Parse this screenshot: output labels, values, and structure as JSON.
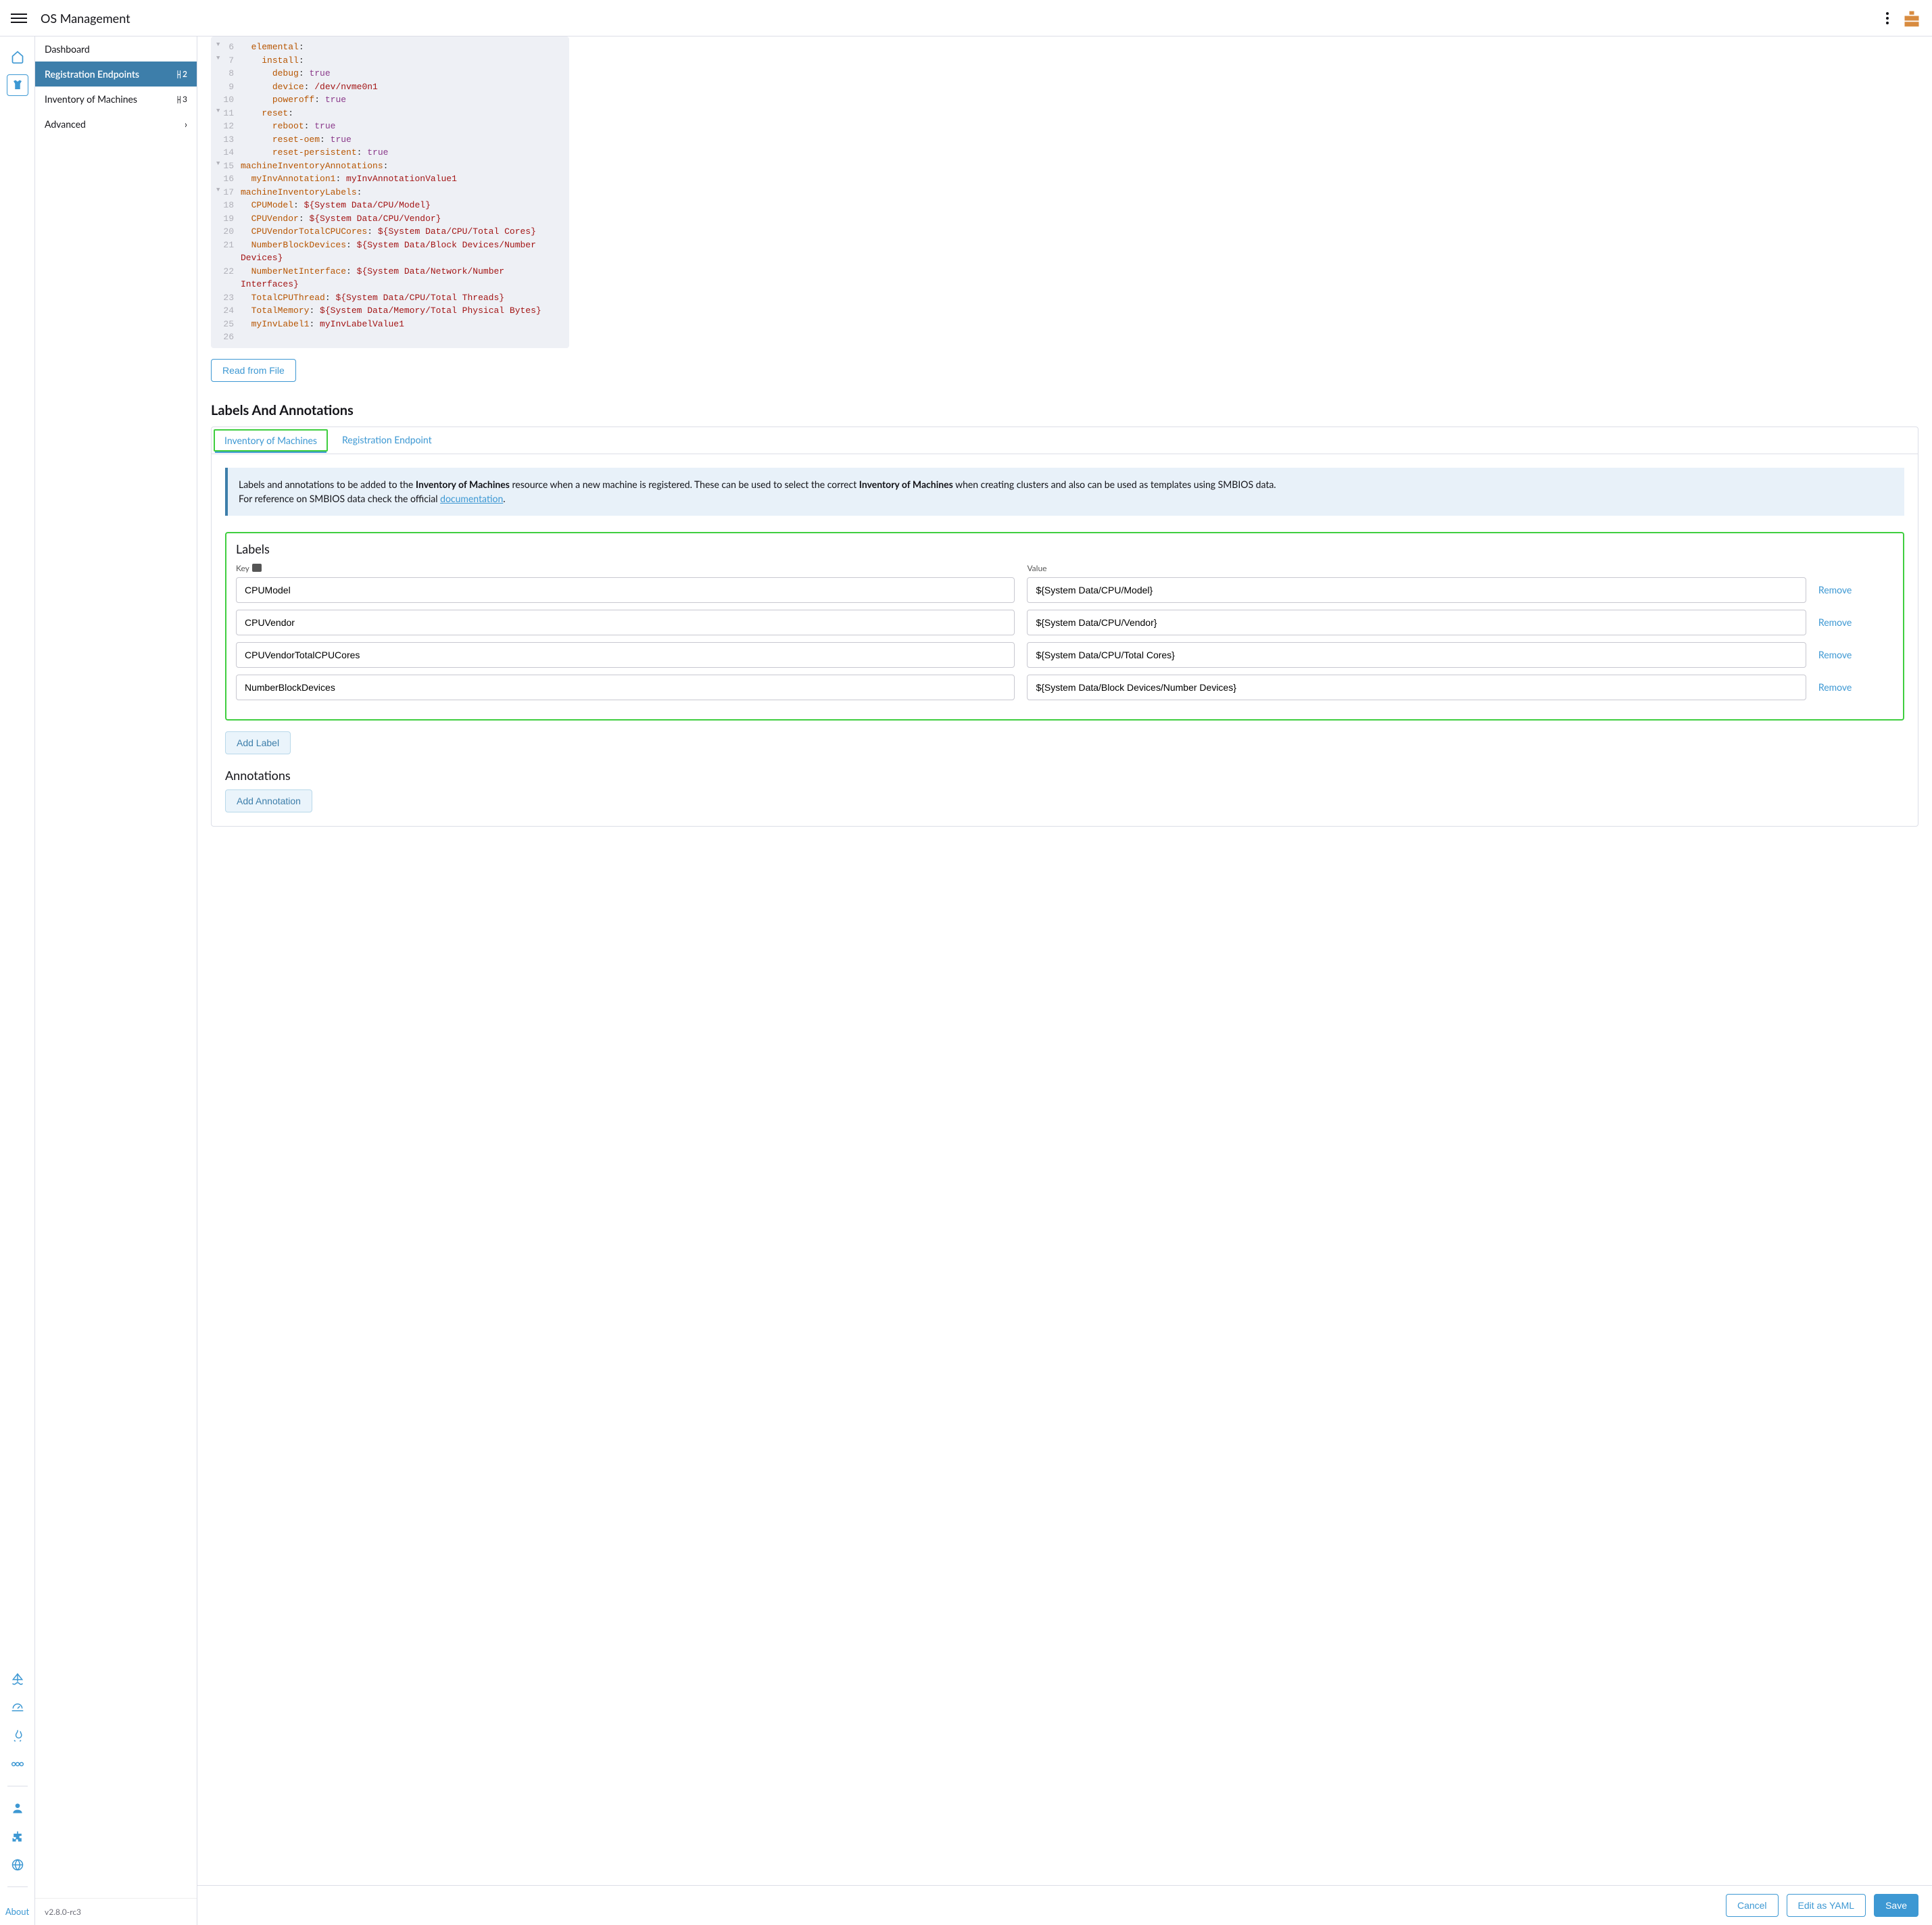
{
  "topbar": {
    "title": "OS Management"
  },
  "sidebar": {
    "items": [
      {
        "label": "Dashboard",
        "badge": ""
      },
      {
        "label": "Registration Endpoints",
        "badge": "2",
        "active": true
      },
      {
        "label": "Inventory of Machines",
        "badge": "3"
      },
      {
        "label": "Advanced",
        "chevron": true
      }
    ],
    "version": "v2.8.0-rc3"
  },
  "rail": {
    "about": "About"
  },
  "code": {
    "lines": [
      {
        "n": 6,
        "fold": true,
        "indent": 2,
        "segs": [
          [
            "k",
            "elemental"
          ],
          [
            "p",
            ":"
          ]
        ]
      },
      {
        "n": 7,
        "fold": true,
        "indent": 4,
        "segs": [
          [
            "k",
            "install"
          ],
          [
            "p",
            ":"
          ]
        ]
      },
      {
        "n": 8,
        "fold": false,
        "indent": 6,
        "segs": [
          [
            "k",
            "debug"
          ],
          [
            "p",
            ": "
          ],
          [
            "b",
            "true"
          ]
        ]
      },
      {
        "n": 9,
        "fold": false,
        "indent": 6,
        "segs": [
          [
            "k",
            "device"
          ],
          [
            "p",
            ": "
          ],
          [
            "s",
            "/dev/nvme0n1"
          ]
        ]
      },
      {
        "n": 10,
        "fold": false,
        "indent": 6,
        "segs": [
          [
            "k",
            "poweroff"
          ],
          [
            "p",
            ": "
          ],
          [
            "b",
            "true"
          ]
        ]
      },
      {
        "n": 11,
        "fold": true,
        "indent": 4,
        "segs": [
          [
            "k",
            "reset"
          ],
          [
            "p",
            ":"
          ]
        ]
      },
      {
        "n": 12,
        "fold": false,
        "indent": 6,
        "segs": [
          [
            "k",
            "reboot"
          ],
          [
            "p",
            ": "
          ],
          [
            "b",
            "true"
          ]
        ]
      },
      {
        "n": 13,
        "fold": false,
        "indent": 6,
        "segs": [
          [
            "k",
            "reset-oem"
          ],
          [
            "p",
            ": "
          ],
          [
            "b",
            "true"
          ]
        ]
      },
      {
        "n": 14,
        "fold": false,
        "indent": 6,
        "segs": [
          [
            "k",
            "reset-persistent"
          ],
          [
            "p",
            ": "
          ],
          [
            "b",
            "true"
          ]
        ]
      },
      {
        "n": 15,
        "fold": true,
        "indent": 0,
        "segs": [
          [
            "k",
            "machineInventoryAnnotations"
          ],
          [
            "p",
            ":"
          ]
        ]
      },
      {
        "n": 16,
        "fold": false,
        "indent": 2,
        "segs": [
          [
            "k",
            "myInvAnnotation1"
          ],
          [
            "p",
            ": "
          ],
          [
            "s",
            "myInvAnnotationValue1"
          ]
        ]
      },
      {
        "n": 17,
        "fold": true,
        "indent": 0,
        "segs": [
          [
            "k",
            "machineInventoryLabels"
          ],
          [
            "p",
            ":"
          ]
        ]
      },
      {
        "n": 18,
        "fold": false,
        "indent": 2,
        "segs": [
          [
            "k",
            "CPUModel"
          ],
          [
            "p",
            ": "
          ],
          [
            "s",
            "${System Data/CPU/Model}"
          ]
        ]
      },
      {
        "n": 19,
        "fold": false,
        "indent": 2,
        "segs": [
          [
            "k",
            "CPUVendor"
          ],
          [
            "p",
            ": "
          ],
          [
            "s",
            "${System Data/CPU/Vendor}"
          ]
        ]
      },
      {
        "n": 20,
        "fold": false,
        "indent": 2,
        "segs": [
          [
            "k",
            "CPUVendorTotalCPUCores"
          ],
          [
            "p",
            ": "
          ],
          [
            "s",
            "${System Data/CPU/Total Cores}"
          ]
        ]
      },
      {
        "n": 21,
        "fold": false,
        "indent": 2,
        "segs": [
          [
            "k",
            "NumberBlockDevices"
          ],
          [
            "p",
            ": "
          ],
          [
            "s",
            "${System Data/Block Devices/Number Devices}"
          ]
        ]
      },
      {
        "n": 22,
        "fold": false,
        "indent": 2,
        "segs": [
          [
            "k",
            "NumberNetInterface"
          ],
          [
            "p",
            ": "
          ],
          [
            "s",
            "${System Data/Network/Number Interfaces}"
          ]
        ]
      },
      {
        "n": 23,
        "fold": false,
        "indent": 2,
        "segs": [
          [
            "k",
            "TotalCPUThread"
          ],
          [
            "p",
            ": "
          ],
          [
            "s",
            "${System Data/CPU/Total Threads}"
          ]
        ]
      },
      {
        "n": 24,
        "fold": false,
        "indent": 2,
        "segs": [
          [
            "k",
            "TotalMemory"
          ],
          [
            "p",
            ": "
          ],
          [
            "s",
            "${System Data/Memory/Total Physical Bytes}"
          ]
        ]
      },
      {
        "n": 25,
        "fold": false,
        "indent": 2,
        "segs": [
          [
            "k",
            "myInvLabel1"
          ],
          [
            "p",
            ": "
          ],
          [
            "s",
            "myInvLabelValue1"
          ]
        ]
      },
      {
        "n": 26,
        "fold": false,
        "indent": 0,
        "segs": []
      }
    ]
  },
  "buttons": {
    "readFile": "Read from File",
    "addLabel": "Add Label",
    "addAnnotation": "Add Annotation",
    "cancel": "Cancel",
    "editYaml": "Edit as YAML",
    "save": "Save",
    "remove": "Remove"
  },
  "section": {
    "title": "Labels And Annotations",
    "tabs": [
      "Inventory of Machines",
      "Registration Endpoint"
    ],
    "banner_pre": "Labels and annotations to be added to the ",
    "banner_b1": "Inventory of Machines",
    "banner_mid": " resource when a new machine is registered. These can be used to select the correct ",
    "banner_b2": "Inventory of Machines",
    "banner_post": " when creating clusters and also can be used as templates using SMBIOS data.",
    "banner_ref": "For reference on SMBIOS data check the official ",
    "banner_link": "documentation",
    "labels_title": "Labels",
    "key_header": "Key",
    "value_header": "Value",
    "annot_title": "Annotations"
  },
  "labels": [
    {
      "key": "CPUModel",
      "value": "${System Data/CPU/Model}"
    },
    {
      "key": "CPUVendor",
      "value": "${System Data/CPU/Vendor}"
    },
    {
      "key": "CPUVendorTotalCPUCores",
      "value": "${System Data/CPU/Total Cores}"
    },
    {
      "key": "NumberBlockDevices",
      "value": "${System Data/Block Devices/Number Devices}"
    }
  ],
  "colors": {
    "accent": "#3d98d3",
    "sidebarActive": "#3d7eaa",
    "highlight": "#3fce3f",
    "codeBg": "#eef0f5",
    "bannerBg": "#e8f1f9"
  }
}
